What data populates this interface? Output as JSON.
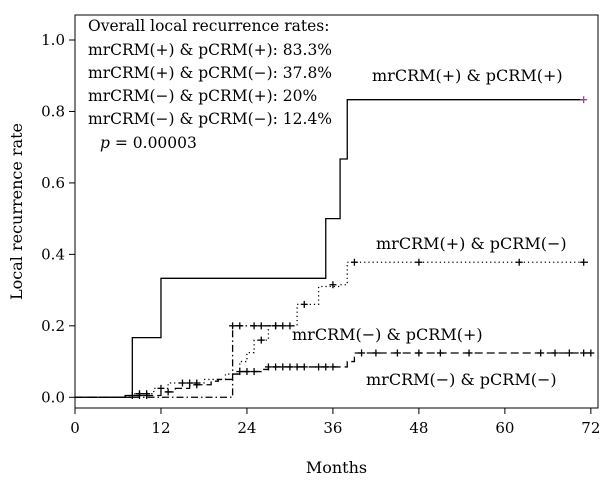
{
  "chart_data": {
    "type": "line",
    "subtype": "kaplan-meier step curves with censor marks",
    "title": "",
    "xlabel": "Months",
    "ylabel": "Local recurrence rate",
    "xlim": [
      0,
      73
    ],
    "ylim": [
      -0.03,
      1.07
    ],
    "xticks": [
      0,
      12,
      24,
      36,
      48,
      60,
      72
    ],
    "xtick_labels": [
      "0",
      "12",
      "24",
      "36",
      "48",
      "60",
      "72"
    ],
    "yticks": [
      0.0,
      0.2,
      0.4,
      0.6,
      0.8,
      1.0
    ],
    "ytick_labels": [
      "0.0",
      "0.2",
      "0.4",
      "0.6",
      "0.8",
      "1.0"
    ],
    "grid": false,
    "legend": {
      "placement": "top-left",
      "heading": "Overall local recurrence rates:",
      "lines": [
        "mrCRM(+) & pCRM(+): 83.3%",
        "mrCRM(+) & pCRM(−): 37.8%",
        "mrCRM(−) & pCRM(+): 20%",
        "mrCRM(−) & pCRM(−): 12.4%"
      ],
      "p_symbol": "p",
      "p_value": " = 0.00003"
    },
    "series": [
      {
        "name": "mrCRM(+) & pCRM(+)",
        "style": "solid",
        "color": "#000000",
        "step_points": [
          [
            0,
            0
          ],
          [
            8,
            0
          ],
          [
            8,
            0.167
          ],
          [
            12,
            0.167
          ],
          [
            12,
            0.333
          ],
          [
            35,
            0.333
          ],
          [
            35,
            0.5
          ],
          [
            37,
            0.5
          ],
          [
            37,
            0.667
          ],
          [
            38,
            0.667
          ],
          [
            38,
            0.833
          ],
          [
            71,
            0.833
          ]
        ],
        "censored": [
          [
            71,
            0.833
          ]
        ],
        "censor_color": "#8e4a8e"
      },
      {
        "name": "mrCRM(+) & pCRM(−)",
        "style": "dotted",
        "color": "#000000",
        "step_points": [
          [
            0,
            0
          ],
          [
            8,
            0
          ],
          [
            8,
            0.01
          ],
          [
            11,
            0.01
          ],
          [
            11,
            0.025
          ],
          [
            13,
            0.025
          ],
          [
            13,
            0.04
          ],
          [
            18,
            0.04
          ],
          [
            18,
            0.05
          ],
          [
            21,
            0.05
          ],
          [
            21,
            0.065
          ],
          [
            23,
            0.065
          ],
          [
            23,
            0.1
          ],
          [
            24,
            0.1
          ],
          [
            24,
            0.125
          ],
          [
            25,
            0.125
          ],
          [
            25,
            0.16
          ],
          [
            27,
            0.16
          ],
          [
            27,
            0.2
          ],
          [
            31,
            0.2
          ],
          [
            31,
            0.26
          ],
          [
            34,
            0.26
          ],
          [
            34,
            0.31
          ],
          [
            37,
            0.31
          ],
          [
            37,
            0.315
          ],
          [
            38,
            0.315
          ],
          [
            38,
            0.378
          ],
          [
            72,
            0.378
          ]
        ],
        "censored": [
          [
            9,
            0.01
          ],
          [
            10,
            0.01
          ],
          [
            12,
            0.025
          ],
          [
            15,
            0.04
          ],
          [
            16,
            0.04
          ],
          [
            17,
            0.04
          ],
          [
            26,
            0.16
          ],
          [
            28,
            0.2
          ],
          [
            30,
            0.2
          ],
          [
            32,
            0.26
          ],
          [
            36,
            0.315
          ],
          [
            39,
            0.378
          ],
          [
            48,
            0.378
          ],
          [
            62,
            0.378
          ],
          [
            71,
            0.378
          ]
        ]
      },
      {
        "name": "mrCRM(−) & pCRM(+)",
        "style": "dashdot",
        "color": "#000000",
        "step_points": [
          [
            0,
            0
          ],
          [
            22,
            0
          ],
          [
            22,
            0.2
          ],
          [
            29,
            0.2
          ]
        ],
        "censored": [
          [
            22,
            0.2
          ],
          [
            23,
            0.2
          ],
          [
            25,
            0.2
          ],
          [
            26,
            0.2
          ],
          [
            28,
            0.2
          ],
          [
            29,
            0.2
          ]
        ]
      },
      {
        "name": "mrCRM(−) & pCRM(−)",
        "style": "dashed",
        "color": "#000000",
        "step_points": [
          [
            0,
            0
          ],
          [
            7,
            0
          ],
          [
            7,
            0.005
          ],
          [
            12,
            0.005
          ],
          [
            12,
            0.015
          ],
          [
            14,
            0.015
          ],
          [
            14,
            0.025
          ],
          [
            16,
            0.025
          ],
          [
            16,
            0.035
          ],
          [
            19,
            0.035
          ],
          [
            19,
            0.045
          ],
          [
            20,
            0.045
          ],
          [
            20,
            0.05
          ],
          [
            22,
            0.05
          ],
          [
            22,
            0.065
          ],
          [
            23,
            0.065
          ],
          [
            23,
            0.072
          ],
          [
            26,
            0.072
          ],
          [
            26,
            0.078
          ],
          [
            27,
            0.078
          ],
          [
            27,
            0.085
          ],
          [
            38,
            0.085
          ],
          [
            38,
            0.1
          ],
          [
            39,
            0.1
          ],
          [
            39,
            0.124
          ],
          [
            72,
            0.124
          ]
        ],
        "censored": [
          [
            8,
            0.005
          ],
          [
            9,
            0.005
          ],
          [
            10,
            0.005
          ],
          [
            13,
            0.015
          ],
          [
            17,
            0.035
          ],
          [
            23,
            0.072
          ],
          [
            24,
            0.072
          ],
          [
            25,
            0.072
          ],
          [
            27,
            0.085
          ],
          [
            28,
            0.085
          ],
          [
            29,
            0.085
          ],
          [
            30,
            0.085
          ],
          [
            31,
            0.085
          ],
          [
            32,
            0.085
          ],
          [
            34,
            0.085
          ],
          [
            35,
            0.085
          ],
          [
            36,
            0.085
          ],
          [
            40,
            0.124
          ],
          [
            42,
            0.124
          ],
          [
            45,
            0.124
          ],
          [
            48,
            0.124
          ],
          [
            51,
            0.124
          ],
          [
            55,
            0.124
          ],
          [
            65,
            0.124
          ],
          [
            67,
            0.124
          ],
          [
            69,
            0.124
          ],
          [
            71,
            0.124
          ],
          [
            72,
            0.124
          ]
        ]
      }
    ]
  }
}
